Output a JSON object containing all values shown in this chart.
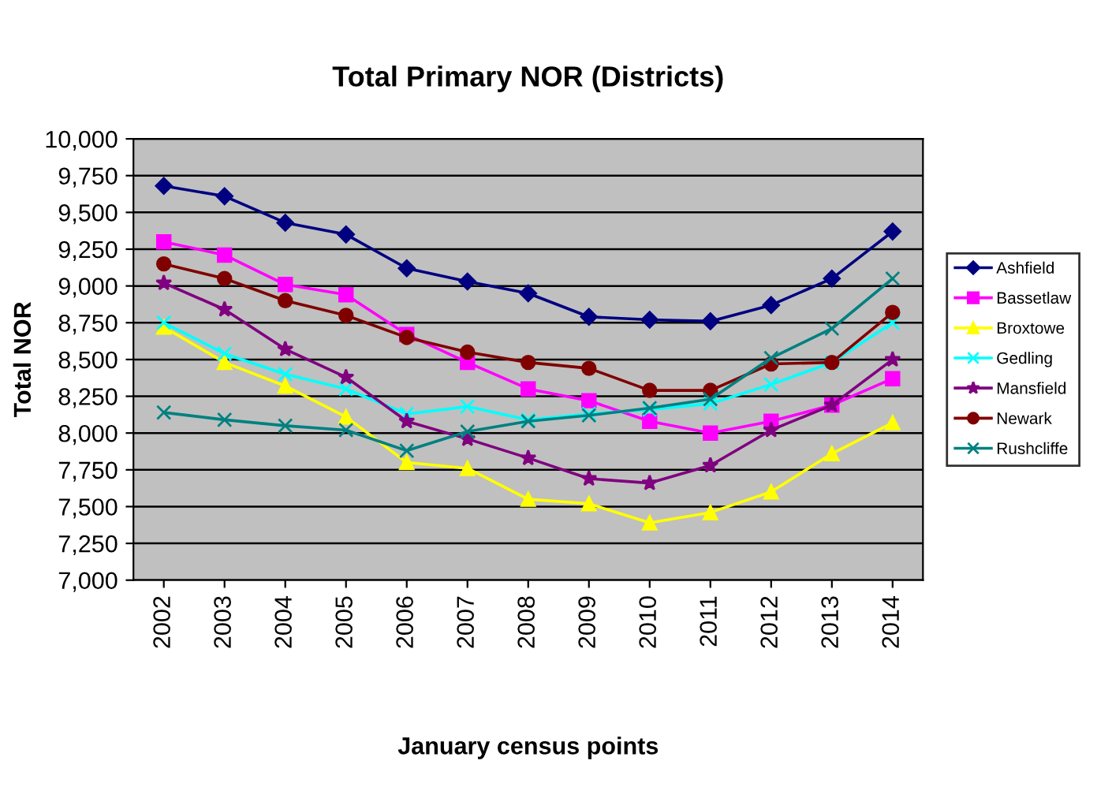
{
  "chart_data": {
    "type": "line",
    "title": "Total Primary NOR (Districts)",
    "xlabel": "January census points",
    "ylabel": "Total NOR",
    "categories": [
      "2002",
      "2003",
      "2004",
      "2005",
      "2006",
      "2007",
      "2008",
      "2009",
      "2010",
      "2011",
      "2012",
      "2013",
      "2014"
    ],
    "series": [
      {
        "name": "Ashfield",
        "color": "#000080",
        "marker": "diamond",
        "values": [
          9680,
          9610,
          9430,
          9350,
          9120,
          9030,
          8950,
          8790,
          8770,
          8760,
          8870,
          9050,
          9370
        ]
      },
      {
        "name": "Bassetlaw",
        "color": "#ff00ff",
        "marker": "square",
        "values": [
          9300,
          9210,
          9010,
          8940,
          8670,
          8480,
          8300,
          8220,
          8080,
          8000,
          8080,
          8190,
          8370
        ]
      },
      {
        "name": "Broxtowe",
        "color": "#ffff00",
        "marker": "triangle",
        "values": [
          8720,
          8480,
          8320,
          8110,
          7800,
          7760,
          7550,
          7520,
          7390,
          7460,
          7600,
          7860,
          8070
        ]
      },
      {
        "name": "Gedling",
        "color": "#00ffff",
        "marker": "cross",
        "values": [
          8750,
          8540,
          8400,
          8300,
          8130,
          8180,
          8090,
          8130,
          8160,
          8200,
          8330,
          8480,
          8750
        ]
      },
      {
        "name": "Mansfield",
        "color": "#800080",
        "marker": "star",
        "values": [
          9020,
          8840,
          8570,
          8380,
          8080,
          7960,
          7830,
          7690,
          7660,
          7780,
          8020,
          8190,
          8500
        ]
      },
      {
        "name": "Newark",
        "color": "#800000",
        "marker": "circle",
        "values": [
          9150,
          9050,
          8900,
          8800,
          8650,
          8550,
          8480,
          8440,
          8290,
          8290,
          8470,
          8480,
          8820
        ]
      },
      {
        "name": "Rushcliffe",
        "color": "#008080",
        "marker": "cross",
        "values": [
          8140,
          8090,
          8050,
          8020,
          7880,
          8010,
          8080,
          8120,
          8170,
          8230,
          8510,
          8710,
          9050
        ]
      }
    ],
    "ylim": [
      7000,
      10000
    ],
    "yticks": [
      {
        "value": 7000,
        "label": "7,000"
      },
      {
        "value": 7250,
        "label": "7,250"
      },
      {
        "value": 7500,
        "label": "7,500"
      },
      {
        "value": 7750,
        "label": "7,750"
      },
      {
        "value": 8000,
        "label": "8,000"
      },
      {
        "value": 8250,
        "label": "8,250"
      },
      {
        "value": 8500,
        "label": "8,500"
      },
      {
        "value": 8750,
        "label": "8,750"
      },
      {
        "value": 9000,
        "label": "9,000"
      },
      {
        "value": 9250,
        "label": "9,250"
      },
      {
        "value": 9500,
        "label": "9,500"
      },
      {
        "value": 9750,
        "label": "9,750"
      },
      {
        "value": 10000,
        "label": "10,000"
      }
    ],
    "grid": "y",
    "legend": "right",
    "line_style": "solid"
  }
}
